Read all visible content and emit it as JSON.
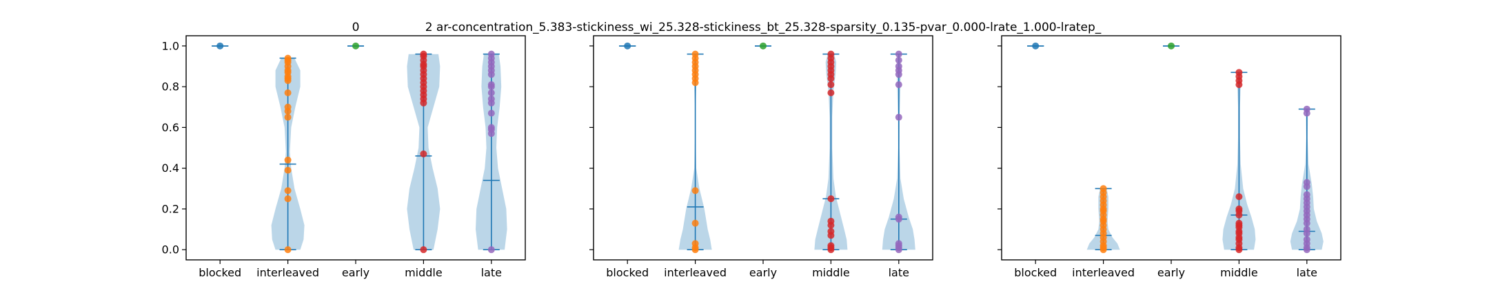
{
  "chart_data": [
    {
      "type": "violin",
      "title": "0",
      "categories": [
        "blocked",
        "interleaved",
        "early",
        "middle",
        "late"
      ],
      "ylim": [
        -0.05,
        1.05
      ],
      "yticks": [
        "0.0",
        "0.2",
        "0.4",
        "0.6",
        "0.8",
        "1.0"
      ],
      "show_ytick_labels": true,
      "grid": false,
      "groups": [
        {
          "category": "blocked",
          "color": "#1f77b4",
          "min": 1.0,
          "max": 1.0,
          "mean": 1.0,
          "density": [],
          "points": [
            1.0
          ]
        },
        {
          "category": "interleaved",
          "color": "#ff7f0e",
          "min": 0.0,
          "max": 0.94,
          "mean": 0.42,
          "density": [
            [
              0.0,
              0.75
            ],
            [
              0.05,
              0.95
            ],
            [
              0.12,
              1.0
            ],
            [
              0.2,
              0.75
            ],
            [
              0.3,
              0.4
            ],
            [
              0.4,
              0.2
            ],
            [
              0.48,
              0.12
            ],
            [
              0.6,
              0.2
            ],
            [
              0.7,
              0.45
            ],
            [
              0.8,
              0.75
            ],
            [
              0.88,
              0.75
            ],
            [
              0.94,
              0.4
            ]
          ],
          "points": [
            0.0,
            0.25,
            0.29,
            0.39,
            0.44,
            0.65,
            0.68,
            0.7,
            0.77,
            0.83,
            0.84,
            0.85,
            0.87,
            0.88,
            0.9,
            0.92,
            0.93,
            0.94
          ]
        },
        {
          "category": "early",
          "color": "#2ca02c",
          "min": 1.0,
          "max": 1.0,
          "mean": 1.0,
          "density": [],
          "points": [
            1.0
          ]
        },
        {
          "category": "middle",
          "color": "#d62728",
          "min": 0.0,
          "max": 0.96,
          "mean": 0.46,
          "density": [
            [
              0.0,
              0.6
            ],
            [
              0.1,
              0.85
            ],
            [
              0.2,
              1.0
            ],
            [
              0.3,
              0.85
            ],
            [
              0.4,
              0.55
            ],
            [
              0.5,
              0.3
            ],
            [
              0.6,
              0.25
            ],
            [
              0.7,
              0.6
            ],
            [
              0.8,
              0.95
            ],
            [
              0.9,
              1.0
            ],
            [
              0.96,
              0.9
            ]
          ],
          "points": [
            0.0,
            0.47,
            0.72,
            0.74,
            0.76,
            0.78,
            0.8,
            0.82,
            0.84,
            0.86,
            0.88,
            0.9,
            0.91,
            0.93,
            0.95,
            0.96
          ]
        },
        {
          "category": "late",
          "color": "#9467bd",
          "min": 0.0,
          "max": 0.96,
          "mean": 0.34,
          "density": [
            [
              0.0,
              0.8
            ],
            [
              0.1,
              0.95
            ],
            [
              0.2,
              0.9
            ],
            [
              0.3,
              0.65
            ],
            [
              0.4,
              0.4
            ],
            [
              0.5,
              0.3
            ],
            [
              0.6,
              0.35
            ],
            [
              0.7,
              0.5
            ],
            [
              0.8,
              0.6
            ],
            [
              0.9,
              0.55
            ],
            [
              0.96,
              0.45
            ]
          ],
          "points": [
            0.0,
            0.57,
            0.59,
            0.6,
            0.67,
            0.72,
            0.74,
            0.77,
            0.8,
            0.81,
            0.86,
            0.88,
            0.9,
            0.92,
            0.94,
            0.96
          ]
        }
      ]
    },
    {
      "type": "violin",
      "title": "2    ar-concentration_5.383-stickiness_wi_25.328-stickiness_bt_25.328-sparsity_0.135-pvar_0.000-lrate_1.000-lratep_",
      "categories": [
        "blocked",
        "interleaved",
        "early",
        "middle",
        "late"
      ],
      "ylim": [
        -0.05,
        1.05
      ],
      "yticks": [
        "0.0",
        "0.2",
        "0.4",
        "0.6",
        "0.8",
        "1.0"
      ],
      "show_ytick_labels": false,
      "grid": false,
      "groups": [
        {
          "category": "blocked",
          "color": "#1f77b4",
          "min": 1.0,
          "max": 1.0,
          "mean": 1.0,
          "density": [],
          "points": [
            1.0
          ]
        },
        {
          "category": "interleaved",
          "color": "#ff7f0e",
          "min": 0.0,
          "max": 0.96,
          "mean": 0.21,
          "density": [
            [
              0.0,
              1.0
            ],
            [
              0.05,
              0.9
            ],
            [
              0.1,
              0.75
            ],
            [
              0.2,
              0.55
            ],
            [
              0.3,
              0.25
            ],
            [
              0.4,
              0.06
            ],
            [
              0.55,
              0.02
            ],
            [
              0.7,
              0.02
            ],
            [
              0.82,
              0.07
            ],
            [
              0.9,
              0.1
            ],
            [
              0.96,
              0.05
            ]
          ],
          "points": [
            0.0,
            0.01,
            0.03,
            0.13,
            0.29,
            0.82,
            0.84,
            0.86,
            0.88,
            0.9,
            0.92,
            0.94,
            0.96
          ]
        },
        {
          "category": "early",
          "color": "#2ca02c",
          "min": 1.0,
          "max": 1.0,
          "mean": 1.0,
          "density": [],
          "points": [
            1.0
          ]
        },
        {
          "category": "middle",
          "color": "#d62728",
          "min": 0.0,
          "max": 0.96,
          "mean": 0.25,
          "density": [
            [
              0.0,
              1.0
            ],
            [
              0.05,
              0.95
            ],
            [
              0.1,
              0.8
            ],
            [
              0.18,
              0.55
            ],
            [
              0.26,
              0.3
            ],
            [
              0.35,
              0.15
            ],
            [
              0.5,
              0.08
            ],
            [
              0.65,
              0.08
            ],
            [
              0.78,
              0.15
            ],
            [
              0.86,
              0.28
            ],
            [
              0.92,
              0.32
            ],
            [
              0.96,
              0.2
            ]
          ],
          "points": [
            0.0,
            0.01,
            0.02,
            0.07,
            0.09,
            0.12,
            0.14,
            0.25,
            0.77,
            0.81,
            0.84,
            0.86,
            0.88,
            0.9,
            0.92,
            0.94,
            0.96
          ]
        },
        {
          "category": "late",
          "color": "#9467bd",
          "min": 0.0,
          "max": 0.96,
          "mean": 0.15,
          "density": [
            [
              0.0,
              1.0
            ],
            [
              0.05,
              0.95
            ],
            [
              0.1,
              0.85
            ],
            [
              0.16,
              0.6
            ],
            [
              0.25,
              0.3
            ],
            [
              0.35,
              0.1
            ],
            [
              0.5,
              0.04
            ],
            [
              0.65,
              0.05
            ],
            [
              0.8,
              0.1
            ],
            [
              0.9,
              0.12
            ],
            [
              0.96,
              0.06
            ]
          ],
          "points": [
            0.0,
            0.01,
            0.02,
            0.03,
            0.15,
            0.16,
            0.65,
            0.81,
            0.86,
            0.88,
            0.9,
            0.93,
            0.96
          ]
        }
      ]
    },
    {
      "type": "violin",
      "title": "",
      "categories": [
        "blocked",
        "interleaved",
        "early",
        "middle",
        "late"
      ],
      "ylim": [
        -0.05,
        1.05
      ],
      "yticks": [
        "0.0",
        "0.2",
        "0.4",
        "0.6",
        "0.8",
        "1.0"
      ],
      "show_ytick_labels": false,
      "grid": false,
      "groups": [
        {
          "category": "blocked",
          "color": "#1f77b4",
          "min": 1.0,
          "max": 1.0,
          "mean": 1.0,
          "density": [],
          "points": [
            1.0
          ]
        },
        {
          "category": "interleaved",
          "color": "#ff7f0e",
          "min": 0.0,
          "max": 0.3,
          "mean": 0.07,
          "density": [
            [
              0.0,
              1.0
            ],
            [
              0.03,
              0.85
            ],
            [
              0.06,
              0.55
            ],
            [
              0.1,
              0.3
            ],
            [
              0.14,
              0.25
            ],
            [
              0.2,
              0.3
            ],
            [
              0.26,
              0.3
            ],
            [
              0.3,
              0.2
            ]
          ],
          "points": [
            0.0,
            0.01,
            0.02,
            0.04,
            0.06,
            0.08,
            0.1,
            0.12,
            0.14,
            0.15,
            0.17,
            0.19,
            0.2,
            0.22,
            0.24,
            0.26,
            0.28,
            0.3
          ]
        },
        {
          "category": "early",
          "color": "#2ca02c",
          "min": 1.0,
          "max": 1.0,
          "mean": 1.0,
          "density": [],
          "points": [
            1.0
          ]
        },
        {
          "category": "middle",
          "color": "#d62728",
          "min": 0.0,
          "max": 0.87,
          "mean": 0.17,
          "density": [
            [
              0.0,
              0.9
            ],
            [
              0.05,
              1.0
            ],
            [
              0.1,
              0.95
            ],
            [
              0.16,
              0.75
            ],
            [
              0.22,
              0.5
            ],
            [
              0.3,
              0.25
            ],
            [
              0.42,
              0.1
            ],
            [
              0.55,
              0.06
            ],
            [
              0.7,
              0.06
            ],
            [
              0.8,
              0.1
            ],
            [
              0.87,
              0.08
            ]
          ],
          "points": [
            0.0,
            0.01,
            0.03,
            0.05,
            0.06,
            0.08,
            0.09,
            0.11,
            0.12,
            0.13,
            0.17,
            0.19,
            0.2,
            0.26,
            0.81,
            0.83,
            0.85,
            0.87
          ]
        },
        {
          "category": "late",
          "color": "#9467bd",
          "min": 0.0,
          "max": 0.69,
          "mean": 0.09,
          "density": [
            [
              0.0,
              0.9
            ],
            [
              0.04,
              1.0
            ],
            [
              0.08,
              0.9
            ],
            [
              0.14,
              0.6
            ],
            [
              0.2,
              0.42
            ],
            [
              0.26,
              0.38
            ],
            [
              0.32,
              0.3
            ],
            [
              0.42,
              0.1
            ],
            [
              0.55,
              0.04
            ],
            [
              0.65,
              0.06
            ],
            [
              0.69,
              0.04
            ]
          ],
          "points": [
            0.0,
            0.01,
            0.03,
            0.05,
            0.08,
            0.1,
            0.13,
            0.15,
            0.17,
            0.19,
            0.21,
            0.23,
            0.25,
            0.27,
            0.31,
            0.33,
            0.67,
            0.69
          ]
        }
      ]
    }
  ]
}
